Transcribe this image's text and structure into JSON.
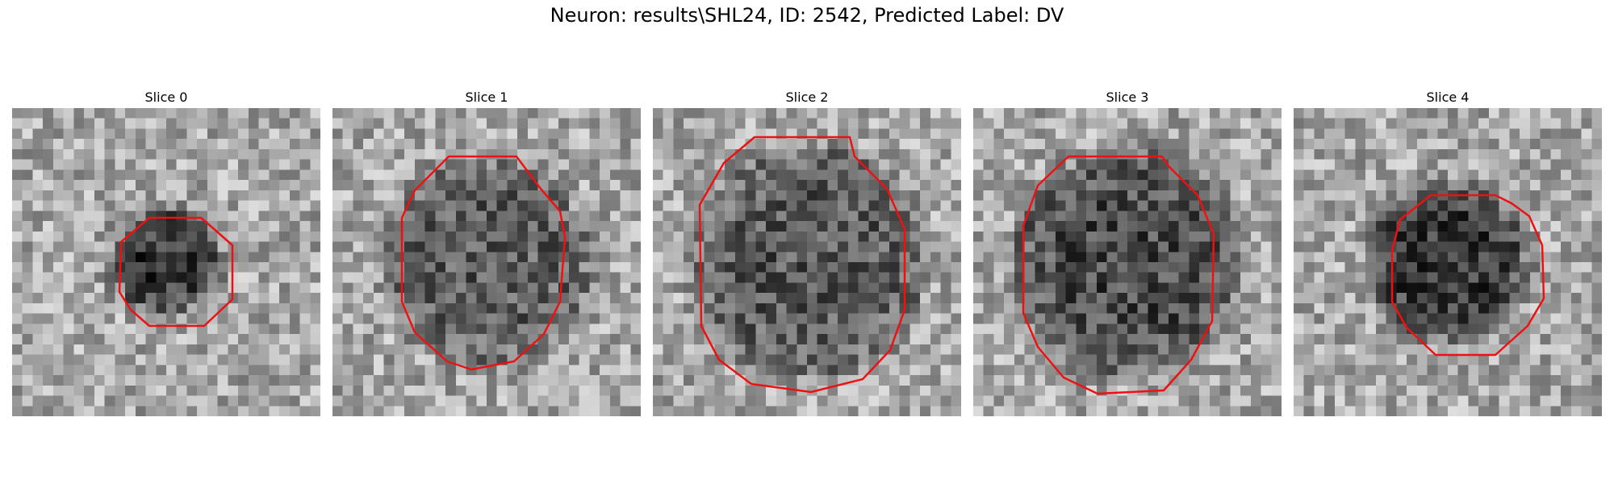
{
  "figure": {
    "title": "Neuron: results\\SHL24, ID: 2542, Predicted Label: DV"
  },
  "contour_color": "#ee1111",
  "slices": [
    {
      "title": "Slice 0",
      "seed": 11,
      "blob_radius": 0.17,
      "blob_depth": 0.45
    },
    {
      "title": "Slice 1",
      "seed": 23,
      "blob_radius": 0.33,
      "blob_depth": 0.3
    },
    {
      "title": "Slice 2",
      "seed": 37,
      "blob_radius": 0.37,
      "blob_depth": 0.32
    },
    {
      "title": "Slice 3",
      "seed": 41,
      "blob_radius": 0.36,
      "blob_depth": 0.38
    },
    {
      "title": "Slice 4",
      "seed": 59,
      "blob_radius": 0.25,
      "blob_depth": 0.45
    }
  ]
}
